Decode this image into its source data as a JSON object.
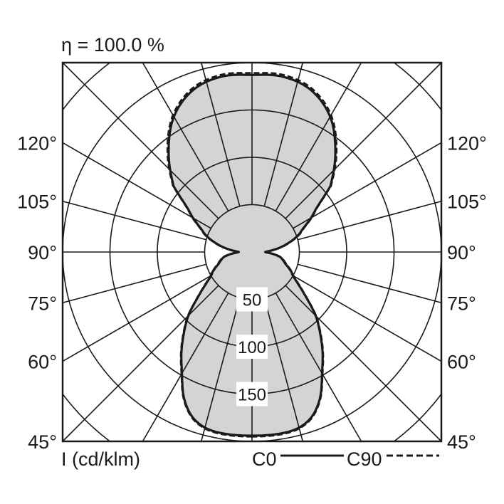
{
  "chart_data": {
    "type": "polar",
    "title": "η = 100.0 %",
    "unit_label": "I (cd/klm)",
    "radial_ticks": [
      50,
      100,
      150
    ],
    "radial_grid": [
      50,
      100,
      150,
      200,
      250,
      300
    ],
    "rmax_visible": 200,
    "angle_step_deg": 15,
    "angle_labels_left": [
      "120°",
      "105°",
      "90°",
      "75°",
      "60°",
      "45°"
    ],
    "angle_labels_right": [
      "120°",
      "105°",
      "90°",
      "75°",
      "60°",
      "45°"
    ],
    "angle_label_values": [
      120,
      105,
      90,
      75,
      60,
      45
    ],
    "grid": true,
    "fill_color": "#d4d4d4",
    "line_color": "#1a1a1a",
    "legend_placement": "bottom-right",
    "series": [
      {
        "name": "C0",
        "style": "solid",
        "gamma": [
          0,
          10,
          15,
          20,
          25,
          30,
          35,
          40,
          45,
          50,
          55,
          60,
          63,
          65,
          70,
          75,
          80,
          85,
          88,
          90,
          92,
          95,
          100,
          105,
          110,
          115,
          120,
          125,
          130,
          140,
          150,
          160,
          170,
          180
        ],
        "values": [
          194,
          194,
          192,
          185,
          170,
          148,
          130,
          112,
          95,
          75,
          60,
          50,
          47,
          44,
          38,
          34,
          30,
          22,
          16,
          14,
          16,
          22,
          32,
          42,
          52,
          60,
          72,
          85,
          108,
          137,
          165,
          182,
          188,
          187
        ]
      },
      {
        "name": "C90",
        "style": "dashed",
        "gamma": [
          0,
          10,
          15,
          20,
          25,
          30,
          35,
          40,
          45,
          50,
          55,
          60,
          63,
          65,
          70,
          75,
          80,
          85,
          88,
          90,
          92,
          95,
          100,
          105,
          110,
          115,
          120,
          125,
          130,
          140,
          150,
          160,
          170,
          180
        ],
        "values": [
          195,
          195,
          193,
          186,
          171,
          149,
          131,
          113,
          96,
          76,
          61,
          51,
          48,
          45,
          39,
          35,
          31,
          23,
          17,
          15,
          17,
          23,
          33,
          43,
          53,
          61,
          73,
          86,
          109,
          139,
          167,
          184,
          190,
          189
        ]
      }
    ]
  }
}
